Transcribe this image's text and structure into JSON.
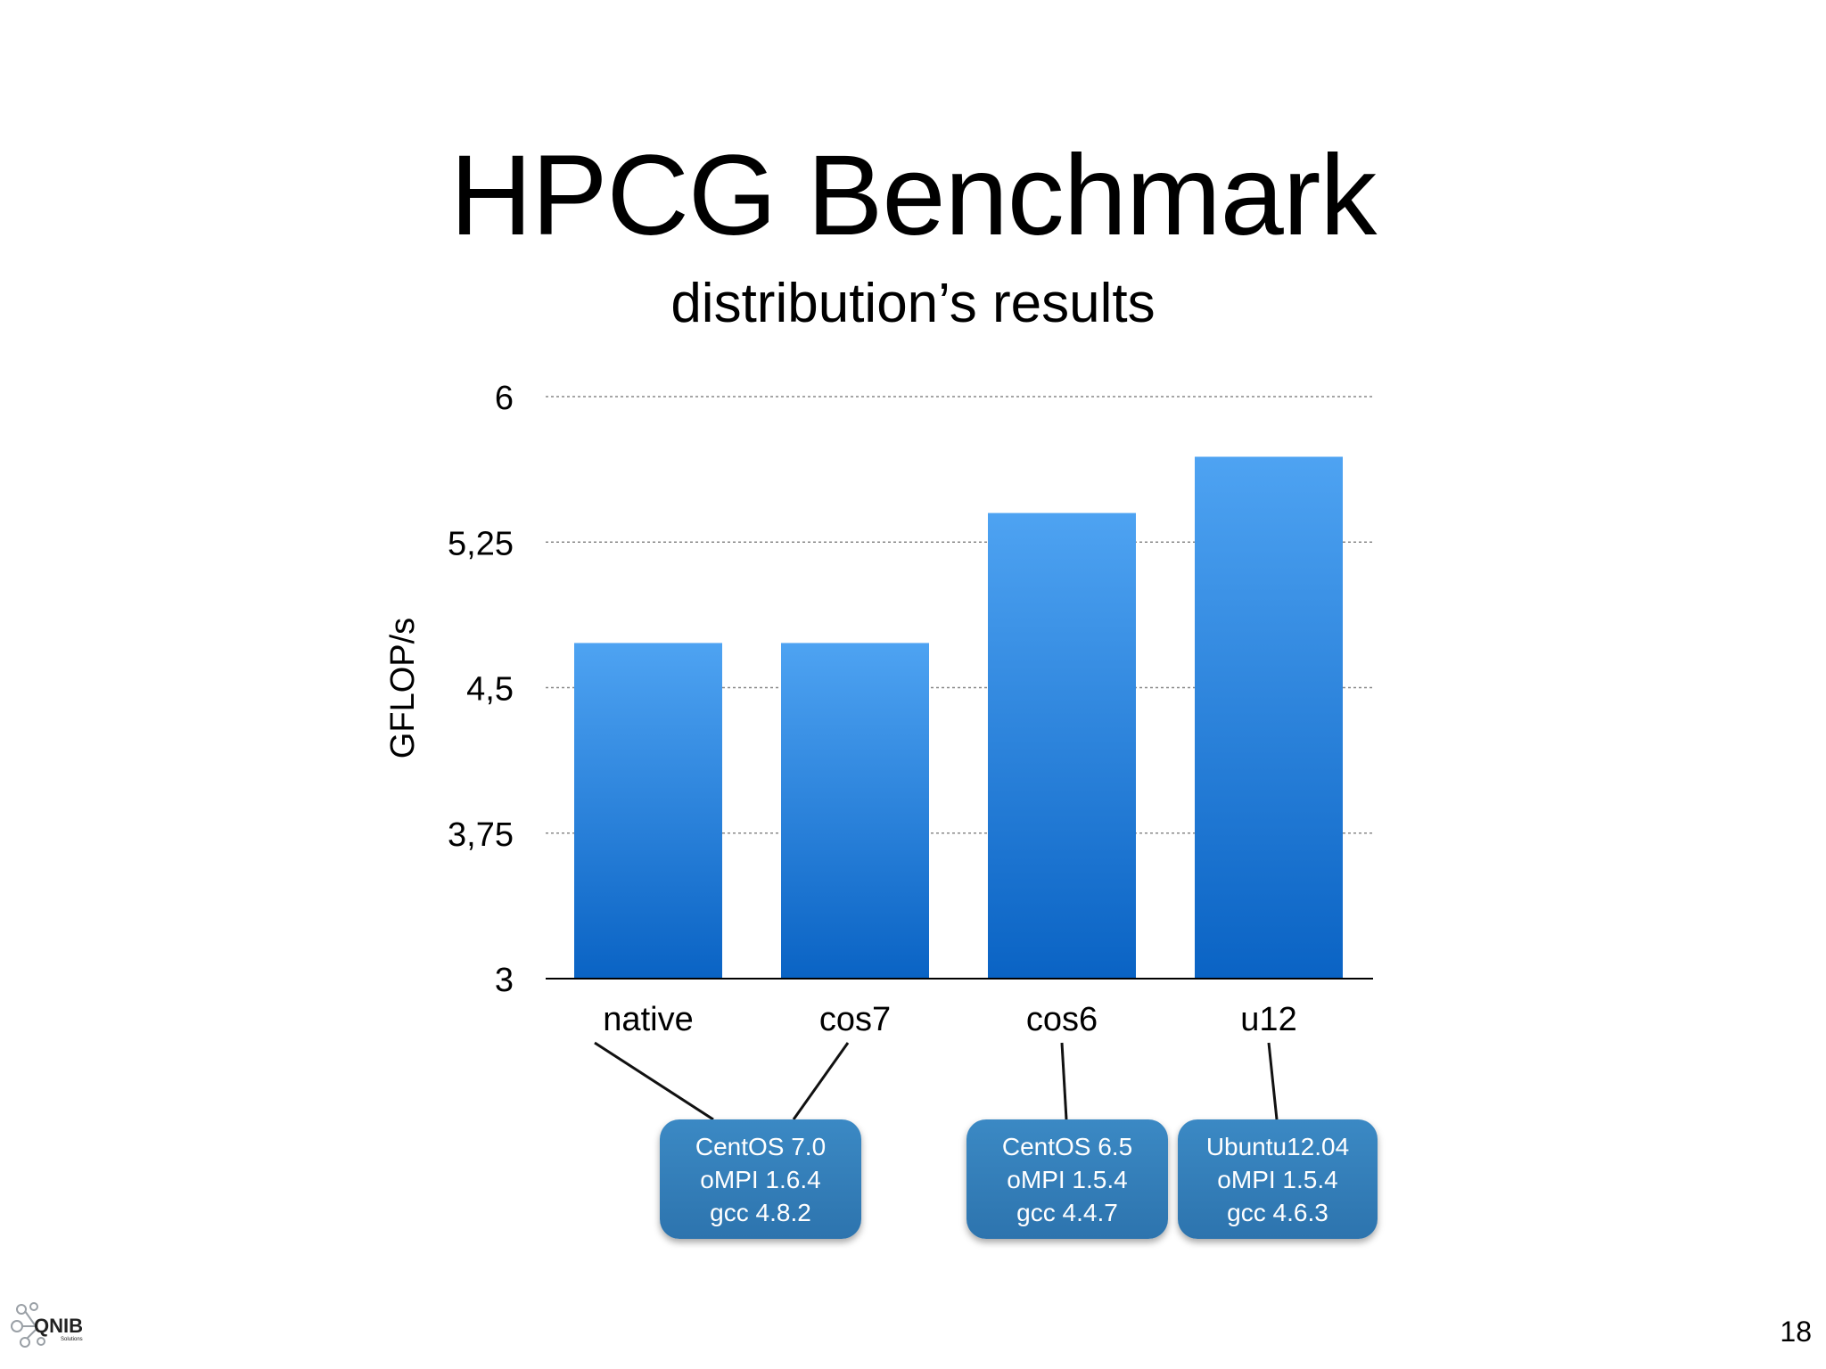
{
  "slide": {
    "title": "HPCG Benchmark",
    "subtitle": "distribution’s results",
    "page_number": "18",
    "logo_text": "QNIB",
    "logo_subtext": "Solutions"
  },
  "chart_data": {
    "type": "bar",
    "title": "HPCG Benchmark",
    "subtitle": "distribution’s results",
    "categories": [
      "native",
      "cos7",
      "cos6",
      "u12"
    ],
    "values": [
      4.73,
      4.73,
      5.4,
      5.69
    ],
    "ylabel": "GFLOP/s",
    "xlabel": "",
    "ylim": [
      3,
      6
    ],
    "yticks": [
      3,
      3.75,
      4.5,
      5.25,
      6
    ],
    "ytick_labels": [
      "3",
      "3,75",
      "4,5",
      "5,25",
      "6"
    ],
    "grid": true,
    "bar_color_top": "#4ea3f2",
    "bar_color_bottom": "#0a63c4"
  },
  "callouts": [
    {
      "id": "centos7",
      "lines": [
        "CentOS 7.0",
        "oMPI 1.6.4",
        "gcc 4.8.2"
      ],
      "links_to": [
        "native",
        "cos7"
      ]
    },
    {
      "id": "centos6",
      "lines": [
        "CentOS 6.5",
        "oMPI 1.5.4",
        "gcc 4.4.7"
      ],
      "links_to": [
        "cos6"
      ]
    },
    {
      "id": "ubuntu12",
      "lines": [
        "Ubuntu12.04",
        "oMPI 1.5.4",
        "gcc 4.6.3"
      ],
      "links_to": [
        "u12"
      ]
    }
  ],
  "colors": {
    "callout_bg": "#3381bd",
    "grid": "#888888",
    "axis": "#000000"
  }
}
